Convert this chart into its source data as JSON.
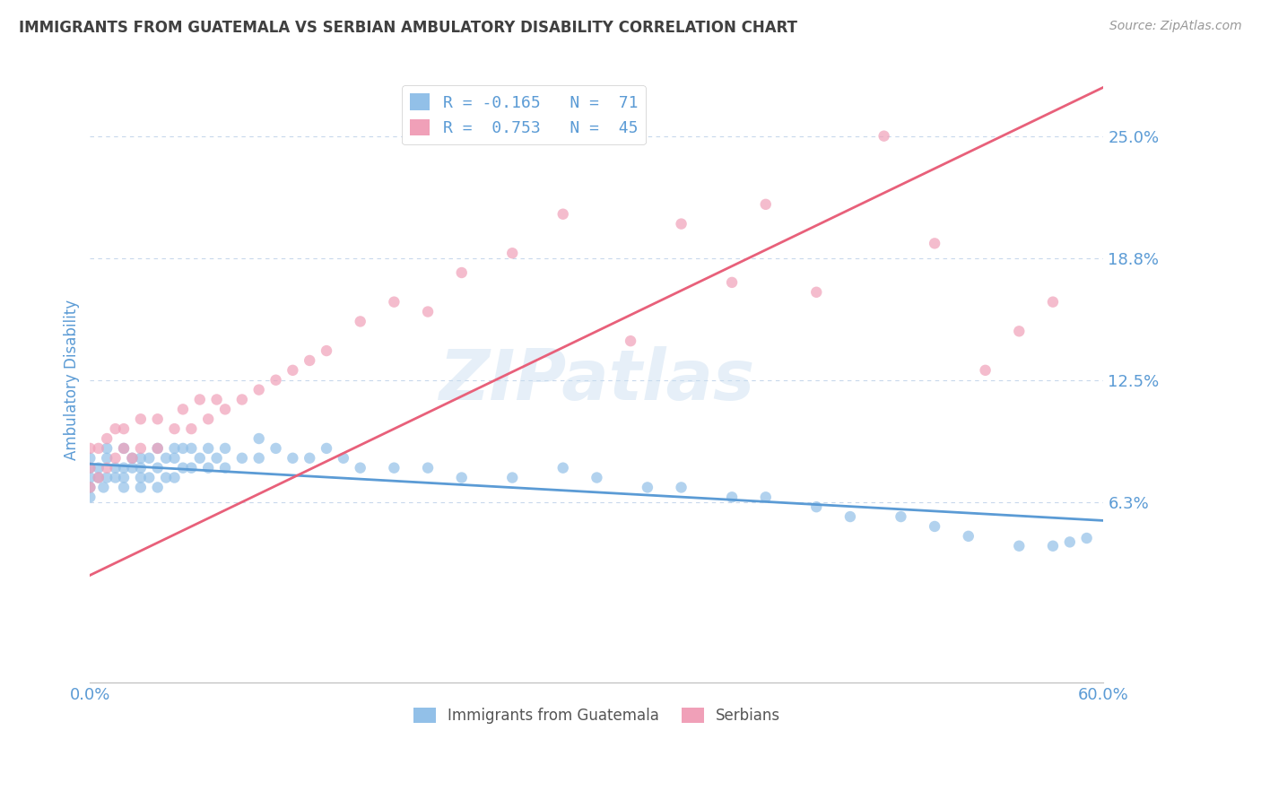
{
  "title": "IMMIGRANTS FROM GUATEMALA VS SERBIAN AMBULATORY DISABILITY CORRELATION CHART",
  "source": "Source: ZipAtlas.com",
  "ylabel": "Ambulatory Disability",
  "xlim": [
    0.0,
    0.6
  ],
  "ylim": [
    -0.03,
    0.28
  ],
  "yticks": [
    0.0,
    0.0625,
    0.125,
    0.1875,
    0.25
  ],
  "ytick_labels": [
    "",
    "6.3%",
    "12.5%",
    "18.8%",
    "25.0%"
  ],
  "xticks": [
    0.0,
    0.1,
    0.2,
    0.3,
    0.4,
    0.5,
    0.6
  ],
  "xtick_labels": [
    "0.0%",
    "",
    "",
    "",
    "",
    "",
    "60.0%"
  ],
  "legend_label_blue": "R = -0.165   N =  71",
  "legend_label_pink": "R =  0.753   N =  45",
  "watermark": "ZIPatlas",
  "blue_color": "#5b9bd5",
  "pink_color": "#e8607a",
  "blue_scatter_color": "#92c0e8",
  "pink_scatter_color": "#f0a0b8",
  "title_color": "#404040",
  "axis_label_color": "#5b9bd5",
  "tick_label_color": "#5b9bd5",
  "grid_color": "#c8d8ec",
  "blue_trend_x": [
    0.0,
    0.6
  ],
  "blue_trend_y": [
    0.082,
    0.053
  ],
  "pink_trend_x": [
    0.0,
    0.6
  ],
  "pink_trend_y": [
    0.025,
    0.275
  ],
  "guatemala_x": [
    0.0,
    0.0,
    0.0,
    0.0,
    0.0,
    0.005,
    0.005,
    0.008,
    0.01,
    0.01,
    0.01,
    0.015,
    0.015,
    0.02,
    0.02,
    0.02,
    0.02,
    0.025,
    0.025,
    0.03,
    0.03,
    0.03,
    0.03,
    0.035,
    0.035,
    0.04,
    0.04,
    0.04,
    0.045,
    0.045,
    0.05,
    0.05,
    0.05,
    0.055,
    0.055,
    0.06,
    0.06,
    0.065,
    0.07,
    0.07,
    0.075,
    0.08,
    0.08,
    0.09,
    0.1,
    0.1,
    0.11,
    0.12,
    0.13,
    0.14,
    0.15,
    0.16,
    0.18,
    0.2,
    0.22,
    0.25,
    0.28,
    0.3,
    0.33,
    0.35,
    0.38,
    0.4,
    0.43,
    0.45,
    0.48,
    0.5,
    0.52,
    0.55,
    0.57,
    0.58,
    0.59
  ],
  "guatemala_y": [
    0.075,
    0.08,
    0.07,
    0.065,
    0.085,
    0.08,
    0.075,
    0.07,
    0.075,
    0.085,
    0.09,
    0.08,
    0.075,
    0.09,
    0.08,
    0.075,
    0.07,
    0.085,
    0.08,
    0.085,
    0.08,
    0.075,
    0.07,
    0.085,
    0.075,
    0.09,
    0.08,
    0.07,
    0.085,
    0.075,
    0.09,
    0.085,
    0.075,
    0.09,
    0.08,
    0.09,
    0.08,
    0.085,
    0.09,
    0.08,
    0.085,
    0.09,
    0.08,
    0.085,
    0.095,
    0.085,
    0.09,
    0.085,
    0.085,
    0.09,
    0.085,
    0.08,
    0.08,
    0.08,
    0.075,
    0.075,
    0.08,
    0.075,
    0.07,
    0.07,
    0.065,
    0.065,
    0.06,
    0.055,
    0.055,
    0.05,
    0.045,
    0.04,
    0.04,
    0.042,
    0.044
  ],
  "serbian_x": [
    0.0,
    0.0,
    0.0,
    0.005,
    0.005,
    0.01,
    0.01,
    0.015,
    0.015,
    0.02,
    0.02,
    0.025,
    0.03,
    0.03,
    0.04,
    0.04,
    0.05,
    0.055,
    0.06,
    0.065,
    0.07,
    0.075,
    0.08,
    0.09,
    0.1,
    0.11,
    0.12,
    0.13,
    0.14,
    0.16,
    0.18,
    0.2,
    0.22,
    0.25,
    0.28,
    0.32,
    0.35,
    0.38,
    0.4,
    0.43,
    0.47,
    0.5,
    0.53,
    0.55,
    0.57
  ],
  "serbian_y": [
    0.07,
    0.08,
    0.09,
    0.075,
    0.09,
    0.08,
    0.095,
    0.085,
    0.1,
    0.09,
    0.1,
    0.085,
    0.09,
    0.105,
    0.09,
    0.105,
    0.1,
    0.11,
    0.1,
    0.115,
    0.105,
    0.115,
    0.11,
    0.115,
    0.12,
    0.125,
    0.13,
    0.135,
    0.14,
    0.155,
    0.165,
    0.16,
    0.18,
    0.19,
    0.21,
    0.145,
    0.205,
    0.175,
    0.215,
    0.17,
    0.25,
    0.195,
    0.13,
    0.15,
    0.165
  ]
}
